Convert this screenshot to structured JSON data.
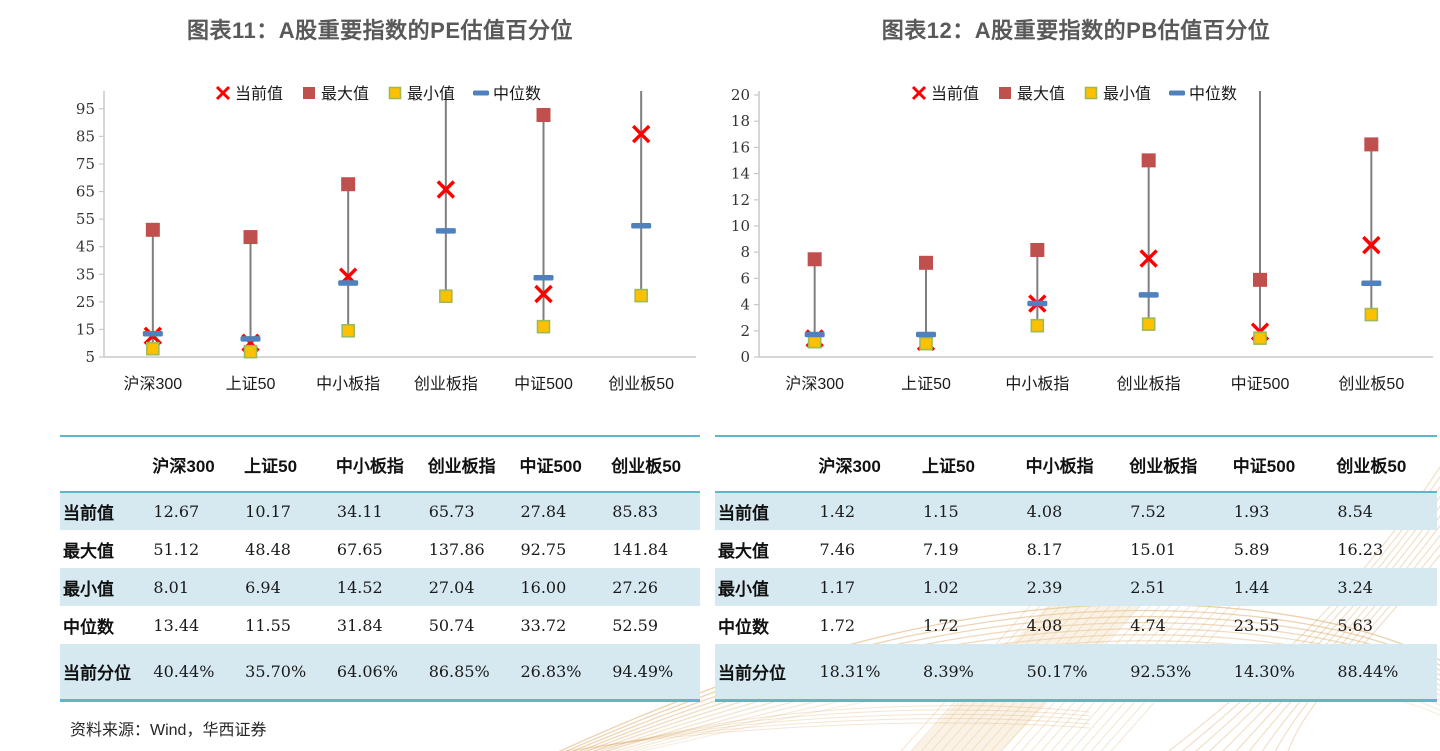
{
  "page": {
    "source_note": "资料来源：Wind，华西证券"
  },
  "palette": {
    "title_color": "#595959",
    "current_x": "#FF0000",
    "max_square": "#C0504D",
    "min_square_fill": "#FFC000",
    "min_square_border": "#9BBB59",
    "median_dash": "#4F81BD",
    "hilo_line": "#7F7F7F",
    "axis_line": "#C9C9C9",
    "table_border": "#5FB6CC",
    "row_highlight": "#D6E9F1",
    "decor_gold": "#D9A45E"
  },
  "chart_data": [
    {
      "type": "stock-hilo",
      "title": "图表11：A股重要指数的PE估值百分位",
      "categories": [
        "沪深300",
        "上证50",
        "中小板指",
        "创业板指",
        "中证500",
        "创业板50"
      ],
      "series": [
        {
          "name": "当前值",
          "marker": "x",
          "values": [
            12.67,
            10.17,
            34.11,
            65.73,
            27.84,
            85.83
          ]
        },
        {
          "name": "最大值",
          "marker": "square",
          "values": [
            51.12,
            48.48,
            67.65,
            137.86,
            92.75,
            141.84
          ]
        },
        {
          "name": "最小值",
          "marker": "square-yellow",
          "values": [
            8.01,
            6.94,
            14.52,
            27.04,
            16.0,
            27.26
          ]
        },
        {
          "name": "中位数",
          "marker": "dash",
          "values": [
            13.44,
            11.55,
            31.84,
            50.74,
            33.72,
            52.59
          ]
        }
      ],
      "ylim": [
        5,
        100
      ],
      "yticks": [
        5,
        15,
        25,
        35,
        45,
        55,
        65,
        75,
        85,
        95
      ],
      "legend_position": "top-center",
      "grid": false
    },
    {
      "type": "stock-hilo",
      "title": "图表12：A股重要指数的PB估值百分位",
      "categories": [
        "沪深300",
        "上证50",
        "中小板指",
        "创业板指",
        "中证500",
        "创业板50"
      ],
      "series": [
        {
          "name": "当前值",
          "marker": "x",
          "values": [
            1.42,
            1.15,
            4.08,
            7.52,
            1.93,
            8.54
          ]
        },
        {
          "name": "最大值",
          "marker": "square",
          "values": [
            7.46,
            7.19,
            8.17,
            15.01,
            5.89,
            16.23
          ]
        },
        {
          "name": "最小值",
          "marker": "square-yellow",
          "values": [
            1.17,
            1.02,
            2.39,
            2.51,
            1.44,
            3.24
          ]
        },
        {
          "name": "中位数",
          "marker": "dash",
          "values": [
            1.72,
            1.72,
            4.08,
            4.74,
            23.55,
            5.63
          ]
        }
      ],
      "ylim": [
        0,
        20
      ],
      "yticks": [
        0,
        2,
        4,
        6,
        8,
        10,
        12,
        14,
        16,
        18,
        20
      ],
      "legend_position": "top-center",
      "grid": false
    }
  ],
  "tables": [
    {
      "headers": [
        "",
        "沪深300",
        "上证50",
        "中小板指",
        "创业板指",
        "中证500",
        "创业板50"
      ],
      "rows": [
        {
          "label": "当前值",
          "values": [
            "12.67",
            "10.17",
            "34.11",
            "65.73",
            "27.84",
            "85.83"
          ],
          "highlight": true,
          "tall": false
        },
        {
          "label": "最大值",
          "values": [
            "51.12",
            "48.48",
            "67.65",
            "137.86",
            "92.75",
            "141.84"
          ],
          "highlight": false,
          "tall": false
        },
        {
          "label": "最小值",
          "values": [
            "8.01",
            "6.94",
            "14.52",
            "27.04",
            "16.00",
            "27.26"
          ],
          "highlight": true,
          "tall": false
        },
        {
          "label": "中位数",
          "values": [
            "13.44",
            "11.55",
            "31.84",
            "50.74",
            "33.72",
            "52.59"
          ],
          "highlight": false,
          "tall": false
        },
        {
          "label": "当前分位",
          "values": [
            "40.44%",
            "35.70%",
            "64.06%",
            "86.85%",
            "26.83%",
            "94.49%"
          ],
          "highlight": true,
          "tall": true
        }
      ]
    },
    {
      "headers": [
        "",
        "沪深300",
        "上证50",
        "中小板指",
        "创业板指",
        "中证500",
        "创业板50"
      ],
      "rows": [
        {
          "label": "当前值",
          "values": [
            "1.42",
            "1.15",
            "4.08",
            "7.52",
            "1.93",
            "8.54"
          ],
          "highlight": true,
          "tall": false
        },
        {
          "label": "最大值",
          "values": [
            "7.46",
            "7.19",
            "8.17",
            "15.01",
            "5.89",
            "16.23"
          ],
          "highlight": false,
          "tall": false
        },
        {
          "label": "最小值",
          "values": [
            "1.17",
            "1.02",
            "2.39",
            "2.51",
            "1.44",
            "3.24"
          ],
          "highlight": true,
          "tall": false
        },
        {
          "label": "中位数",
          "values": [
            "1.72",
            "1.72",
            "4.08",
            "4.74",
            "23.55",
            "5.63"
          ],
          "highlight": false,
          "tall": false
        },
        {
          "label": "当前分位",
          "values": [
            "18.31%",
            "8.39%",
            "50.17%",
            "92.53%",
            "14.30%",
            "88.44%"
          ],
          "highlight": true,
          "tall": true
        }
      ]
    }
  ]
}
